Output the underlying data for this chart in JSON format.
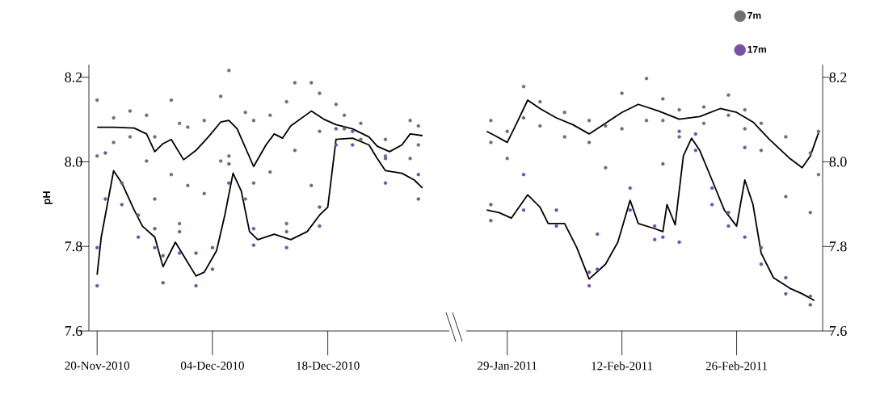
{
  "chart_data": [
    {
      "type": "scatter",
      "ylabel": "pH",
      "marker": "circle",
      "legend": false,
      "xlim": [
        "2010-11-19",
        "2011-01-01T18:00"
      ],
      "ylim": [
        7.6,
        8.23
      ],
      "xticks": [
        {
          "value": "2010-11-20",
          "label": "20-Nov-2010"
        },
        {
          "value": "2010-12-04",
          "label": "04-Dec-2010"
        },
        {
          "value": "2010-12-18",
          "label": "18-Dec-2010"
        }
      ],
      "yticks": [
        {
          "value": 7.6,
          "label": "7.6"
        },
        {
          "value": 7.8,
          "label": "7.8"
        },
        {
          "value": 8.0,
          "label": "8.0"
        },
        {
          "value": 8.2,
          "label": "8.2"
        }
      ],
      "series": [
        {
          "color": "#707070",
          "x": [
            "2010-11-20",
            "2010-11-20",
            "2010-11-22",
            "2010-11-22",
            "2010-11-24",
            "2010-11-24",
            "2010-11-26",
            "2010-11-26",
            "2010-11-27",
            "2010-11-27",
            "2010-11-29",
            "2010-11-29",
            "2010-11-30",
            "2010-11-30",
            "2010-12-01",
            "2010-12-01",
            "2010-12-03",
            "2010-12-03",
            "2010-12-05",
            "2010-12-05",
            "2010-12-06",
            "2010-12-06",
            "2010-12-08",
            "2010-12-08",
            "2010-12-09",
            "2010-12-09",
            "2010-12-11",
            "2010-12-11",
            "2010-12-13",
            "2010-12-13",
            "2010-12-14",
            "2010-12-14",
            "2010-12-16",
            "2010-12-16",
            "2010-12-17",
            "2010-12-17",
            "2010-12-19",
            "2010-12-20",
            "2010-12-20",
            "2010-12-22",
            "2010-12-22",
            "2010-12-25",
            "2010-12-25",
            "2010-12-28",
            "2010-12-28",
            "2010-12-29",
            "2010-12-29"
          ],
          "values": [
            8.146,
            8.014,
            8.104,
            8.046,
            8.12,
            8.059,
            8.11,
            8.002,
            8.059,
            7.912,
            8.146,
            7.97,
            8.091,
            7.854,
            8.082,
            7.944,
            8.098,
            7.925,
            8.155,
            8.002,
            8.216,
            8.014,
            8.117,
            7.912,
            8.098,
            7.95,
            8.11,
            7.976,
            8.142,
            7.854,
            8.187,
            8.027,
            8.187,
            7.944,
            8.162,
            8.072,
            8.136,
            8.11,
            8.078,
            8.091,
            8.053,
            8.053,
            8.014,
            8.098,
            8.008,
            8.085,
            8.04
          ]
        },
        {
          "color": "#7a4fa6",
          "x": [
            "2010-11-20",
            "2010-11-20",
            "2010-11-21",
            "2010-11-21",
            "2010-11-23",
            "2010-11-23",
            "2010-11-25",
            "2010-11-25",
            "2010-11-27",
            "2010-11-27",
            "2010-11-28",
            "2010-11-28",
            "2010-11-30",
            "2010-11-30",
            "2010-12-02",
            "2010-12-02",
            "2010-12-04",
            "2010-12-04",
            "2010-12-06",
            "2010-12-06",
            "2010-12-09",
            "2010-12-09",
            "2010-12-13",
            "2010-12-13",
            "2010-12-17",
            "2010-12-17",
            "2010-12-19",
            "2010-12-19",
            "2010-12-21",
            "2010-12-21",
            "2010-12-25",
            "2010-12-25",
            "2010-12-29",
            "2010-12-29"
          ],
          "values": [
            7.797,
            7.707,
            8.021,
            7.912,
            7.95,
            7.899,
            7.874,
            7.822,
            7.842,
            7.797,
            7.778,
            7.714,
            7.835,
            7.784,
            7.784,
            7.707,
            7.797,
            7.746,
            7.995,
            7.95,
            7.842,
            7.803,
            7.835,
            7.797,
            7.893,
            7.848,
            8.078,
            8.04,
            8.072,
            8.04,
            8.008,
            7.95,
            7.97,
            7.912
          ]
        },
        {
          "type": "line",
          "color": "#000000",
          "marker": "none",
          "line_style": "solid",
          "x": [
            "2010-11-20",
            "2010-11-22",
            "2010-11-24T12:00",
            "2010-11-26",
            "2010-11-27",
            "2010-11-28",
            "2010-11-29",
            "2010-11-30T12:00",
            "2010-12-02",
            "2010-12-03T12:00",
            "2010-12-05",
            "2010-12-06",
            "2010-12-07",
            "2010-12-09",
            "2010-12-10T12:00",
            "2010-12-11T12:00",
            "2010-12-12T12:00",
            "2010-12-13T12:00",
            "2010-12-16",
            "2010-12-17T12:00",
            "2010-12-19",
            "2010-12-21",
            "2010-12-23",
            "2010-12-24",
            "2010-12-25T12:00",
            "2010-12-27",
            "2010-12-28",
            "2010-12-29T12:00"
          ],
          "values": [
            8.082,
            8.082,
            8.08,
            8.066,
            8.024,
            8.043,
            8.053,
            8.005,
            8.027,
            8.059,
            8.094,
            8.098,
            8.078,
            7.989,
            8.04,
            8.066,
            8.056,
            8.085,
            8.12,
            8.101,
            8.088,
            8.078,
            8.059,
            8.037,
            8.024,
            8.04,
            8.066,
            8.062
          ]
        },
        {
          "type": "line",
          "color": "#000000",
          "marker": "none",
          "line_style": "solid",
          "x": [
            "2010-11-20",
            "2010-11-20T12:00",
            "2010-11-22",
            "2010-11-23",
            "2010-11-24T12:00",
            "2010-11-25T12:00",
            "2010-11-27",
            "2010-11-28",
            "2010-11-29T12:00",
            "2010-11-30T12:00",
            "2010-12-02",
            "2010-12-03",
            "2010-12-04T12:00",
            "2010-12-05T12:00",
            "2010-12-06T12:00",
            "2010-12-07T12:00",
            "2010-12-08T12:00",
            "2010-12-09T12:00",
            "2010-12-11T12:00",
            "2010-12-13T12:00",
            "2010-12-15T12:00",
            "2010-12-17",
            "2010-12-18",
            "2010-12-19",
            "2010-12-21",
            "2010-12-23",
            "2010-12-24",
            "2010-12-25",
            "2010-12-27",
            "2010-12-28T12:00",
            "2010-12-29T12:00"
          ],
          "values": [
            7.733,
            7.822,
            7.979,
            7.95,
            7.886,
            7.848,
            7.822,
            7.752,
            7.81,
            7.778,
            7.73,
            7.739,
            7.79,
            7.874,
            7.973,
            7.931,
            7.835,
            7.816,
            7.829,
            7.816,
            7.835,
            7.874,
            7.893,
            8.053,
            8.056,
            8.04,
            8.008,
            7.979,
            7.973,
            7.957,
            7.938
          ]
        }
      ]
    },
    {
      "type": "scatter",
      "marker": "circle",
      "legend": "top right",
      "xlim": [
        "2011-01-24",
        "2011-03-08T12:00"
      ],
      "ylim": [
        7.6,
        8.23
      ],
      "xticks": [
        {
          "value": "2011-01-29",
          "label": "29-Jan-2011"
        },
        {
          "value": "2011-02-12",
          "label": "12-Feb-2011"
        },
        {
          "value": "2011-02-26",
          "label": "26-Feb-2011"
        }
      ],
      "yticks": [
        {
          "value": 7.6,
          "label": "7.6"
        },
        {
          "value": 7.8,
          "label": "7.8"
        },
        {
          "value": 8.0,
          "label": "8.0"
        },
        {
          "value": 8.2,
          "label": "8.2"
        }
      ],
      "series": [
        {
          "name": "7m",
          "color": "#707070",
          "x": [
            "2011-01-27",
            "2011-01-27",
            "2011-01-29",
            "2011-01-29",
            "2011-01-31",
            "2011-01-31",
            "2011-02-02",
            "2011-02-02",
            "2011-02-05",
            "2011-02-05",
            "2011-02-08",
            "2011-02-08",
            "2011-02-10",
            "2011-02-10",
            "2011-02-12",
            "2011-02-12",
            "2011-02-15",
            "2011-02-15",
            "2011-02-17",
            "2011-02-17",
            "2011-02-19",
            "2011-02-19",
            "2011-02-22",
            "2011-02-22",
            "2011-02-25",
            "2011-02-25",
            "2011-02-27",
            "2011-02-27",
            "2011-03-01",
            "2011-03-01",
            "2011-03-04",
            "2011-03-04",
            "2011-03-07",
            "2011-03-07",
            "2011-03-08",
            "2011-03-08"
          ],
          "values": [
            8.098,
            8.046,
            8.072,
            8.008,
            8.178,
            8.104,
            8.142,
            8.085,
            8.117,
            8.059,
            8.098,
            8.046,
            8.085,
            7.986,
            8.162,
            8.078,
            8.197,
            8.098,
            8.149,
            8.098,
            8.123,
            8.059,
            8.13,
            8.091,
            8.158,
            8.11,
            8.123,
            8.078,
            8.091,
            8.027,
            8.059,
            7.918,
            8.021,
            7.88,
            8.072,
            7.97
          ]
        },
        {
          "name": "17m",
          "color": "#7a4fa6",
          "x": [
            "2011-01-27",
            "2011-01-27",
            "2011-01-31",
            "2011-01-31",
            "2011-02-04",
            "2011-02-04",
            "2011-02-08",
            "2011-02-08",
            "2011-02-09",
            "2011-02-09",
            "2011-02-13",
            "2011-02-13",
            "2011-02-16",
            "2011-02-16",
            "2011-02-17",
            "2011-02-17",
            "2011-02-19",
            "2011-02-19",
            "2011-02-21",
            "2011-02-21",
            "2011-02-23",
            "2011-02-23",
            "2011-02-25",
            "2011-02-25",
            "2011-02-27",
            "2011-02-27",
            "2011-03-01",
            "2011-03-01",
            "2011-03-04",
            "2011-03-04",
            "2011-03-07",
            "2011-03-07"
          ],
          "values": [
            7.899,
            7.861,
            7.97,
            7.886,
            7.886,
            7.848,
            7.739,
            7.707,
            7.829,
            7.746,
            7.938,
            7.886,
            7.848,
            7.816,
            7.995,
            7.822,
            8.072,
            7.81,
            8.066,
            8.027,
            7.938,
            7.899,
            7.88,
            7.848,
            8.034,
            7.822,
            7.797,
            7.758,
            7.726,
            7.688,
            7.682,
            7.662
          ]
        },
        {
          "type": "line",
          "color": "#000000",
          "marker": "none",
          "line_style": "solid",
          "x": [
            "2011-01-26T12:00",
            "2011-01-27T12:00",
            "2011-01-29",
            "2011-01-30",
            "2011-01-31T12:00",
            "2011-02-02",
            "2011-02-04",
            "2011-02-06",
            "2011-02-08",
            "2011-02-09T12:00",
            "2011-02-12",
            "2011-02-14",
            "2011-02-16T12:00",
            "2011-02-19",
            "2011-02-21T12:00",
            "2011-02-24",
            "2011-02-26",
            "2011-02-28",
            "2011-03-02",
            "2011-03-04T12:00",
            "2011-03-06",
            "2011-03-07",
            "2011-03-08"
          ],
          "values": [
            8.072,
            8.062,
            8.046,
            8.085,
            8.146,
            8.126,
            8.104,
            8.088,
            8.066,
            8.085,
            8.117,
            8.136,
            8.12,
            8.101,
            8.107,
            8.126,
            8.117,
            8.094,
            8.053,
            8.008,
            7.986,
            8.014,
            8.069
          ]
        },
        {
          "type": "line",
          "color": "#000000",
          "marker": "none",
          "line_style": "solid",
          "x": [
            "2011-01-26T12:00",
            "2011-01-28",
            "2011-01-29T12:00",
            "2011-01-31T12:00",
            "2011-02-02",
            "2011-02-03",
            "2011-02-05",
            "2011-02-06T12:00",
            "2011-02-08",
            "2011-02-10",
            "2011-02-11T12:00",
            "2011-02-13",
            "2011-02-14",
            "2011-02-16",
            "2011-02-17",
            "2011-02-17T12:00",
            "2011-02-18T12:00",
            "2011-02-19T12:00",
            "2011-02-20T12:00",
            "2011-02-21T12:00",
            "2011-02-23",
            "2011-02-24T12:00",
            "2011-02-26",
            "2011-02-27",
            "2011-02-28",
            "2011-03-01",
            "2011-03-02T12:00",
            "2011-03-04T12:00",
            "2011-03-06",
            "2011-03-07T12:00"
          ],
          "values": [
            7.886,
            7.88,
            7.867,
            7.922,
            7.893,
            7.854,
            7.854,
            7.797,
            7.723,
            7.758,
            7.81,
            7.909,
            7.854,
            7.842,
            7.835,
            7.899,
            7.851,
            8.014,
            8.056,
            8.027,
            7.957,
            7.886,
            7.848,
            7.957,
            7.899,
            7.784,
            7.726,
            7.701,
            7.688,
            7.672
          ]
        }
      ]
    }
  ]
}
